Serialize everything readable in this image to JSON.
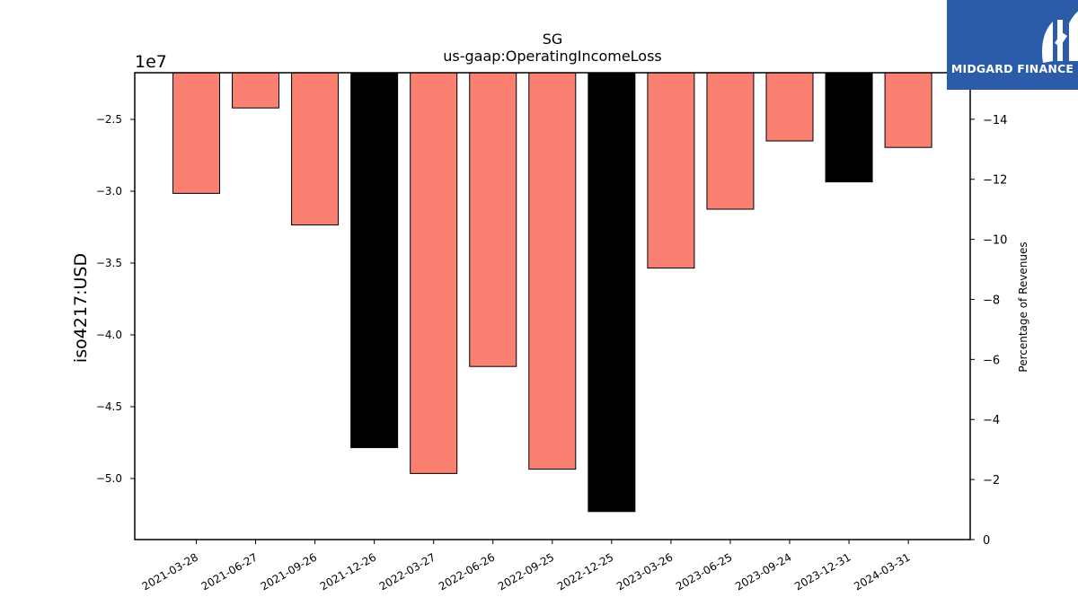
{
  "chart_data": {
    "type": "bar",
    "title": "SG",
    "subtitle": "us-gaap:OperatingIncomeLoss",
    "ylabel": "iso4217:USD",
    "ylabel_right": "Percentage of Revenues",
    "y_offset_label": "1e7",
    "categories": [
      "2021-03-28",
      "2021-06-27",
      "2021-09-26",
      "2021-12-26",
      "2022-03-27",
      "2022-06-26",
      "2022-09-25",
      "2022-12-25",
      "2023-03-26",
      "2023-06-25",
      "2023-09-24",
      "2023-12-31",
      "2024-03-31"
    ],
    "values": [
      -30150000,
      -24200000,
      -32350000,
      -47850000,
      -49650000,
      -42200000,
      -49350000,
      -52300000,
      -35350000,
      -31250000,
      -26500000,
      -29350000,
      -26950000
    ],
    "bar_colors": [
      "#fa8072",
      "#fa8072",
      "#fa8072",
      "#000000",
      "#fa8072",
      "#fa8072",
      "#fa8072",
      "#000000",
      "#fa8072",
      "#fa8072",
      "#fa8072",
      "#000000",
      "#fa8072"
    ],
    "ylim": [
      -54250000,
      -21750000
    ],
    "yticks": [
      -25000000,
      -30000000,
      -35000000,
      -40000000,
      -45000000,
      -50000000
    ],
    "ytick_labels": [
      "−2.5",
      "−3.0",
      "−3.5",
      "−4.0",
      "−4.5",
      "−5.0"
    ],
    "y2lim": [
      0,
      15.55
    ],
    "y2ticks": [
      0,
      2,
      4,
      6,
      8,
      10,
      12,
      14
    ],
    "y2tick_labels": [
      "0",
      "−2",
      "−4",
      "−6",
      "−8",
      "−10",
      "−12",
      "−14"
    ],
    "grid": false,
    "legend": "none"
  },
  "logo": {
    "text": "MIDGARD FINANCE",
    "bg_color": "#2a5caa"
  }
}
